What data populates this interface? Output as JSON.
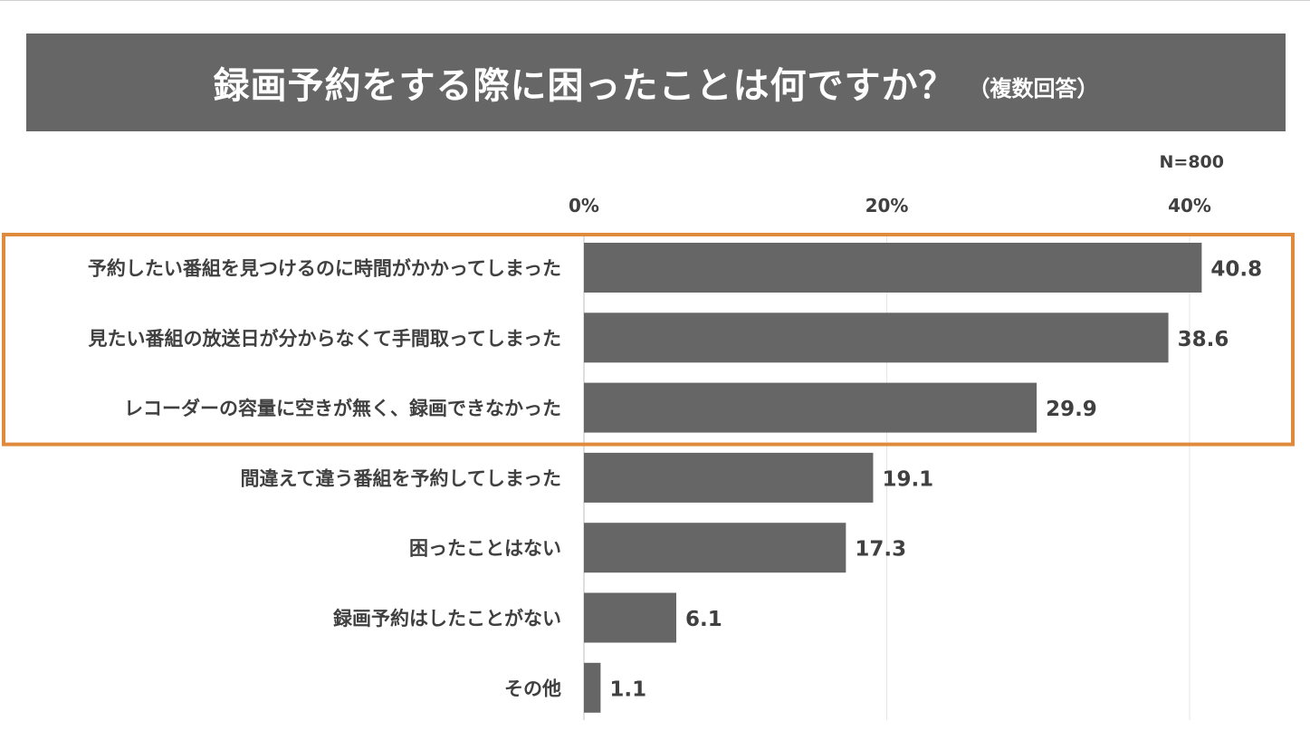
{
  "title": {
    "main": "録画予約をする際に困ったことは何ですか？",
    "sub": "（複数回答）"
  },
  "n_label": "N=800",
  "colors": {
    "banner": "#666666",
    "bar": "#666666",
    "highlight": "#e08a3c",
    "text": "#404040"
  },
  "chart_data": {
    "type": "bar",
    "orientation": "horizontal",
    "categories": [
      "予約したい番組を見つけるのに時間がかかってしまった",
      "見たい番組の放送日が分からなくて手間取ってしまった",
      "レコーダーの容量に空きが無く、録画できなかった",
      "間違えて違う番組を予約してしまった",
      "困ったことはない",
      "録画予約はしたことがない",
      "その他"
    ],
    "values": [
      40.8,
      38.6,
      29.9,
      19.1,
      17.3,
      6.1,
      1.1
    ],
    "value_labels": [
      "40.8",
      "38.6",
      "29.9",
      "19.1",
      "17.3",
      "6.1",
      "1.1"
    ],
    "ticks": [
      0,
      20,
      40
    ],
    "tick_labels": [
      "0%",
      "20%",
      "40%"
    ],
    "xlim": [
      0,
      40
    ],
    "highlighted_indices": [
      0,
      1,
      2
    ],
    "axis_position": "top",
    "legend": "none",
    "grid": true
  }
}
